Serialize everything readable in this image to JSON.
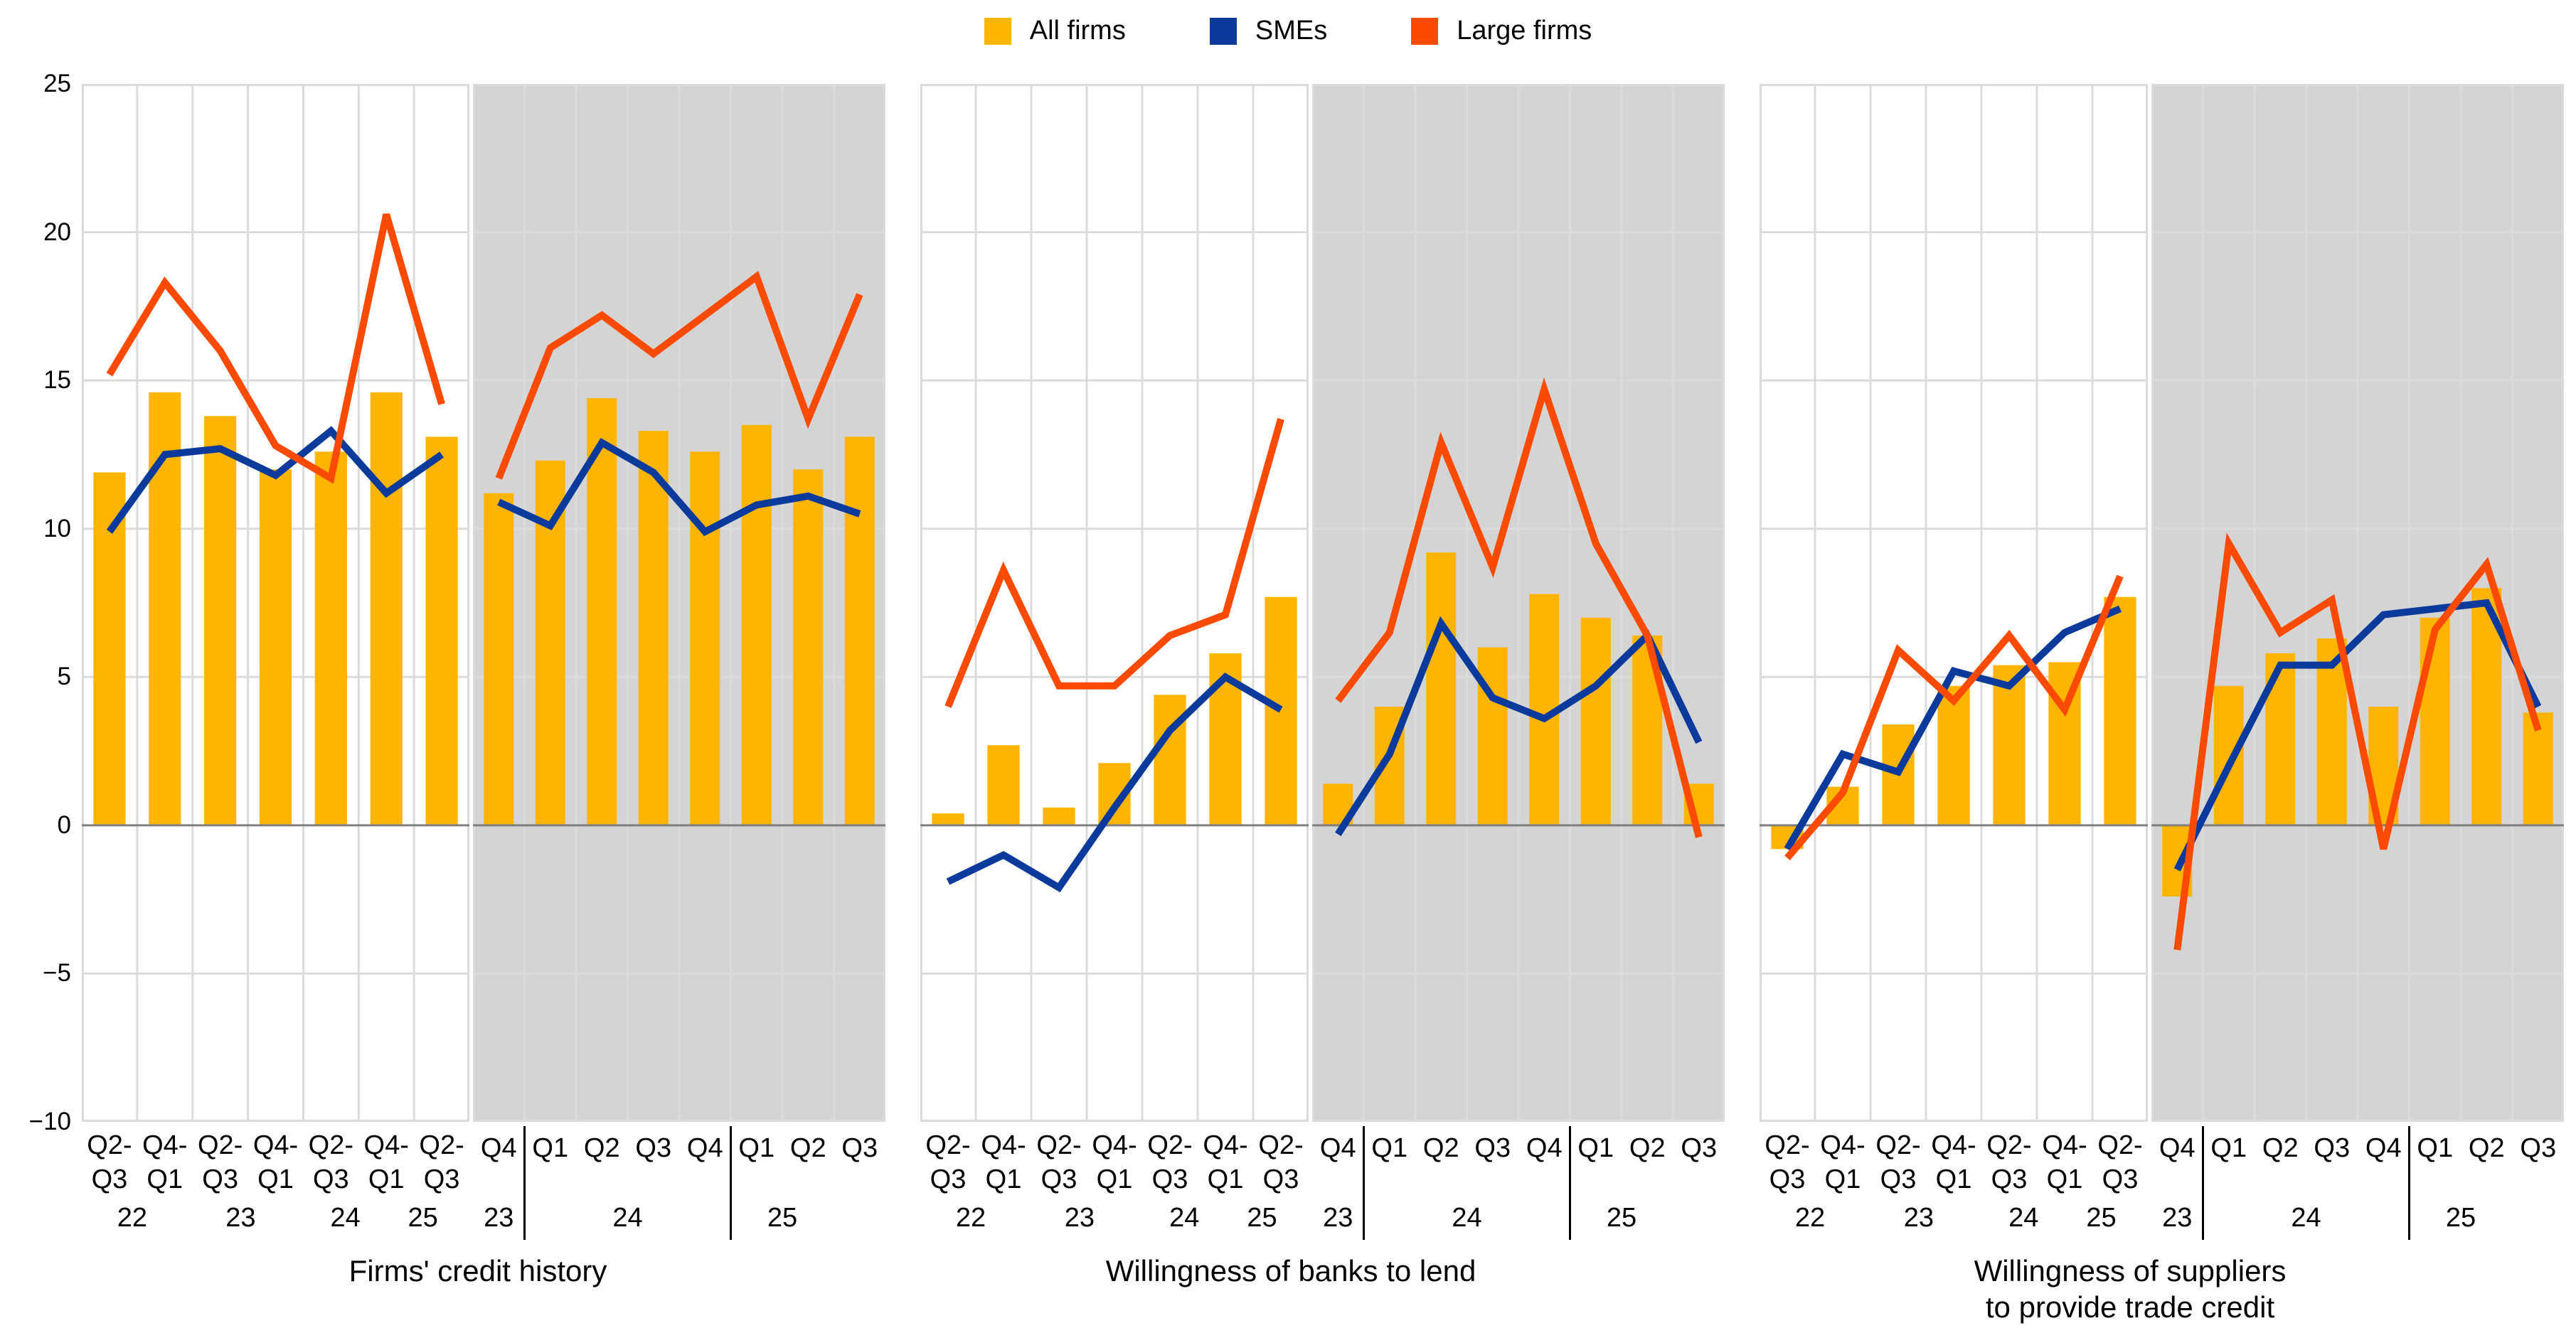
{
  "legend": {
    "items": [
      {
        "label": "All firms",
        "color_key": "all_firms"
      },
      {
        "label": "SMEs",
        "color_key": "smes"
      },
      {
        "label": "Large firms",
        "color_key": "large_firms"
      }
    ]
  },
  "colors": {
    "all_firms": "#FFB400",
    "smes": "#0A3A9C",
    "large_firms": "#FC4B00",
    "panel_gray": "#D4D4D4",
    "panel_white": "#FFFFFF",
    "gridline": "#DBDBDB",
    "zero_line": "#7F7F7F",
    "text": "#000000"
  },
  "y_axis": {
    "min": -10,
    "max": 25,
    "ticks": [
      25,
      20,
      15,
      10,
      5,
      0,
      -5,
      -10
    ],
    "tick_labels": [
      "25",
      "20",
      "15",
      "10",
      "5",
      "0",
      "−5",
      "−10"
    ]
  },
  "titles": [
    {
      "text": "Firms' credit history"
    },
    {
      "text": "Willingness of banks to lend"
    },
    {
      "text": "Willingness of suppliers\nto provide trade credit"
    }
  ],
  "chart_data": [
    {
      "type": "bar+line",
      "name": "firms-credit-history-biannual",
      "background": "white",
      "label_style": "biannual",
      "labels_line1": [
        "Q2-",
        "Q4-",
        "Q2-",
        "Q4-",
        "Q2-",
        "Q4-",
        "Q2-"
      ],
      "labels_line2": [
        "Q3",
        "Q1",
        "Q3",
        "Q1",
        "Q3",
        "Q1",
        "Q3"
      ],
      "years": [
        {
          "text": "22",
          "pct": 13
        },
        {
          "text": "23",
          "pct": 41
        },
        {
          "text": "24",
          "pct": 68
        },
        {
          "text": "25",
          "pct": 88
        }
      ],
      "series": [
        {
          "name": "All firms",
          "kind": "bar",
          "values": [
            11.9,
            14.6,
            13.8,
            12.0,
            12.6,
            14.6,
            13.1
          ]
        },
        {
          "name": "SMEs",
          "kind": "line",
          "values": [
            9.9,
            12.5,
            12.7,
            11.8,
            13.3,
            11.2,
            12.5
          ]
        },
        {
          "name": "Large firms",
          "kind": "line",
          "values": [
            15.2,
            18.3,
            16.0,
            12.8,
            11.7,
            20.6,
            14.2
          ]
        }
      ]
    },
    {
      "type": "bar+line",
      "name": "firms-credit-history-quarterly",
      "background": "gray",
      "label_style": "quarterly",
      "labels": [
        "Q4",
        "Q1",
        "Q2",
        "Q3",
        "Q4",
        "Q1",
        "Q2",
        "Q3"
      ],
      "separators_after": [
        0,
        4
      ],
      "years": [
        {
          "text": "23",
          "pct": 6.25
        },
        {
          "text": "24",
          "pct": 37.5
        },
        {
          "text": "25",
          "pct": 75
        }
      ],
      "series": [
        {
          "name": "All firms",
          "kind": "bar",
          "values": [
            11.2,
            12.3,
            14.4,
            13.3,
            12.6,
            13.5,
            12.0,
            13.1
          ]
        },
        {
          "name": "SMEs",
          "kind": "line",
          "values": [
            10.9,
            10.1,
            12.9,
            11.9,
            9.9,
            10.8,
            11.1,
            10.5
          ]
        },
        {
          "name": "Large firms",
          "kind": "line",
          "values": [
            11.7,
            16.1,
            17.2,
            15.9,
            17.2,
            18.5,
            13.7,
            17.9
          ]
        }
      ]
    },
    {
      "type": "bar+line",
      "name": "willingness-banks-biannual",
      "background": "white",
      "label_style": "biannual",
      "labels_line1": [
        "Q2-",
        "Q4-",
        "Q2-",
        "Q4-",
        "Q2-",
        "Q4-",
        "Q2-"
      ],
      "labels_line2": [
        "Q3",
        "Q1",
        "Q3",
        "Q1",
        "Q3",
        "Q1",
        "Q3"
      ],
      "years": [
        {
          "text": "22",
          "pct": 13
        },
        {
          "text": "23",
          "pct": 41
        },
        {
          "text": "24",
          "pct": 68
        },
        {
          "text": "25",
          "pct": 88
        }
      ],
      "series": [
        {
          "name": "All firms",
          "kind": "bar",
          "values": [
            0.4,
            2.7,
            0.6,
            2.1,
            4.4,
            5.8,
            7.7
          ]
        },
        {
          "name": "SMEs",
          "kind": "line",
          "values": [
            -1.9,
            -1.0,
            -2.1,
            0.6,
            3.2,
            5.0,
            3.9
          ]
        },
        {
          "name": "Large firms",
          "kind": "line",
          "values": [
            4.0,
            8.6,
            4.7,
            4.7,
            6.4,
            7.1,
            13.7
          ]
        }
      ]
    },
    {
      "type": "bar+line",
      "name": "willingness-banks-quarterly",
      "background": "gray",
      "label_style": "quarterly",
      "labels": [
        "Q4",
        "Q1",
        "Q2",
        "Q3",
        "Q4",
        "Q1",
        "Q2",
        "Q3"
      ],
      "separators_after": [
        0,
        4
      ],
      "years": [
        {
          "text": "23",
          "pct": 6.25
        },
        {
          "text": "24",
          "pct": 37.5
        },
        {
          "text": "25",
          "pct": 75
        }
      ],
      "series": [
        {
          "name": "All firms",
          "kind": "bar",
          "values": [
            1.4,
            4.0,
            9.2,
            6.0,
            7.8,
            7.0,
            6.4,
            1.4
          ]
        },
        {
          "name": "SMEs",
          "kind": "line",
          "values": [
            -0.3,
            2.4,
            6.8,
            4.3,
            3.6,
            4.7,
            6.4,
            2.8
          ]
        },
        {
          "name": "Large firms",
          "kind": "line",
          "values": [
            4.2,
            6.5,
            12.9,
            8.7,
            14.7,
            9.5,
            6.4,
            -0.4
          ]
        }
      ]
    },
    {
      "type": "bar+line",
      "name": "willingness-suppliers-biannual",
      "background": "white",
      "label_style": "biannual",
      "labels_line1": [
        "Q2-",
        "Q4-",
        "Q2-",
        "Q4-",
        "Q2-",
        "Q4-",
        "Q2-"
      ],
      "labels_line2": [
        "Q3",
        "Q1",
        "Q3",
        "Q1",
        "Q3",
        "Q1",
        "Q3"
      ],
      "years": [
        {
          "text": "22",
          "pct": 13
        },
        {
          "text": "23",
          "pct": 41
        },
        {
          "text": "24",
          "pct": 68
        },
        {
          "text": "25",
          "pct": 88
        }
      ],
      "series": [
        {
          "name": "All firms",
          "kind": "bar",
          "values": [
            -0.8,
            1.3,
            3.4,
            4.7,
            5.4,
            5.5,
            7.7
          ]
        },
        {
          "name": "SMEs",
          "kind": "line",
          "values": [
            -0.8,
            2.4,
            1.8,
            5.2,
            4.7,
            6.5,
            7.3
          ]
        },
        {
          "name": "Large firms",
          "kind": "line",
          "values": [
            -1.1,
            1.1,
            5.9,
            4.2,
            6.4,
            3.9,
            8.4
          ]
        }
      ]
    },
    {
      "type": "bar+line",
      "name": "willingness-suppliers-quarterly",
      "background": "gray",
      "label_style": "quarterly",
      "labels": [
        "Q4",
        "Q1",
        "Q2",
        "Q3",
        "Q4",
        "Q1",
        "Q2",
        "Q3"
      ],
      "separators_after": [
        0,
        4
      ],
      "years": [
        {
          "text": "23",
          "pct": 6.25
        },
        {
          "text": "24",
          "pct": 37.5
        },
        {
          "text": "25",
          "pct": 75
        }
      ],
      "series": [
        {
          "name": "All firms",
          "kind": "bar",
          "values": [
            -2.4,
            4.7,
            5.8,
            6.3,
            4.0,
            7.0,
            8.0,
            3.8
          ]
        },
        {
          "name": "SMEs",
          "kind": "line",
          "values": [
            -1.5,
            2.0,
            5.4,
            5.4,
            7.1,
            7.3,
            7.5,
            4.0
          ]
        },
        {
          "name": "Large firms",
          "kind": "line",
          "values": [
            -4.2,
            9.5,
            6.5,
            7.6,
            -0.8,
            6.6,
            8.8,
            3.2
          ]
        }
      ]
    }
  ]
}
